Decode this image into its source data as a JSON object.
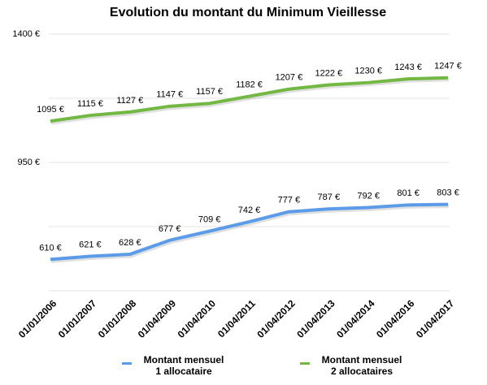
{
  "chart_data": {
    "type": "line",
    "title": "Evolution du montant du Minimum Vieillesse",
    "categories": [
      "01/01/2006",
      "01/01/2007",
      "01/01/2008",
      "01/04/2009",
      "01/04/2010",
      "01/04/2011",
      "01/04/2012",
      "01/04/2013",
      "01/04/2014",
      "01/04/2016",
      "01/04/2017"
    ],
    "series": [
      {
        "name": "Montant mensuel\n1 allocataire",
        "color": "#5b9be8",
        "values": [
          610,
          621,
          628,
          677,
          709,
          742,
          777,
          787,
          792,
          801,
          803
        ],
        "value_labels": [
          "610 €",
          "621 €",
          "628 €",
          "677 €",
          "709 €",
          "742 €",
          "777 €",
          "787 €",
          "792 €",
          "801 €",
          "803 €"
        ]
      },
      {
        "name": "Montant mensuel\n2 allocataires",
        "color": "#72b843",
        "values": [
          1095,
          1115,
          1127,
          1147,
          1157,
          1182,
          1207,
          1222,
          1230,
          1243,
          1247
        ],
        "value_labels": [
          "1095 €",
          "1115 €",
          "1127 €",
          "1147 €",
          "1157 €",
          "1182 €",
          "1207 €",
          "1222 €",
          "1230 €",
          "1243 €",
          "1247 €"
        ]
      }
    ],
    "ylim": [
      500,
      1400
    ],
    "yticks": [
      {
        "value": 1400,
        "label": "1400 €"
      },
      {
        "value": 1175,
        "label": null
      },
      {
        "value": 950,
        "label": "950 €"
      },
      {
        "value": 725,
        "label": null
      },
      {
        "value": 500,
        "label": null
      }
    ],
    "grid": true
  }
}
